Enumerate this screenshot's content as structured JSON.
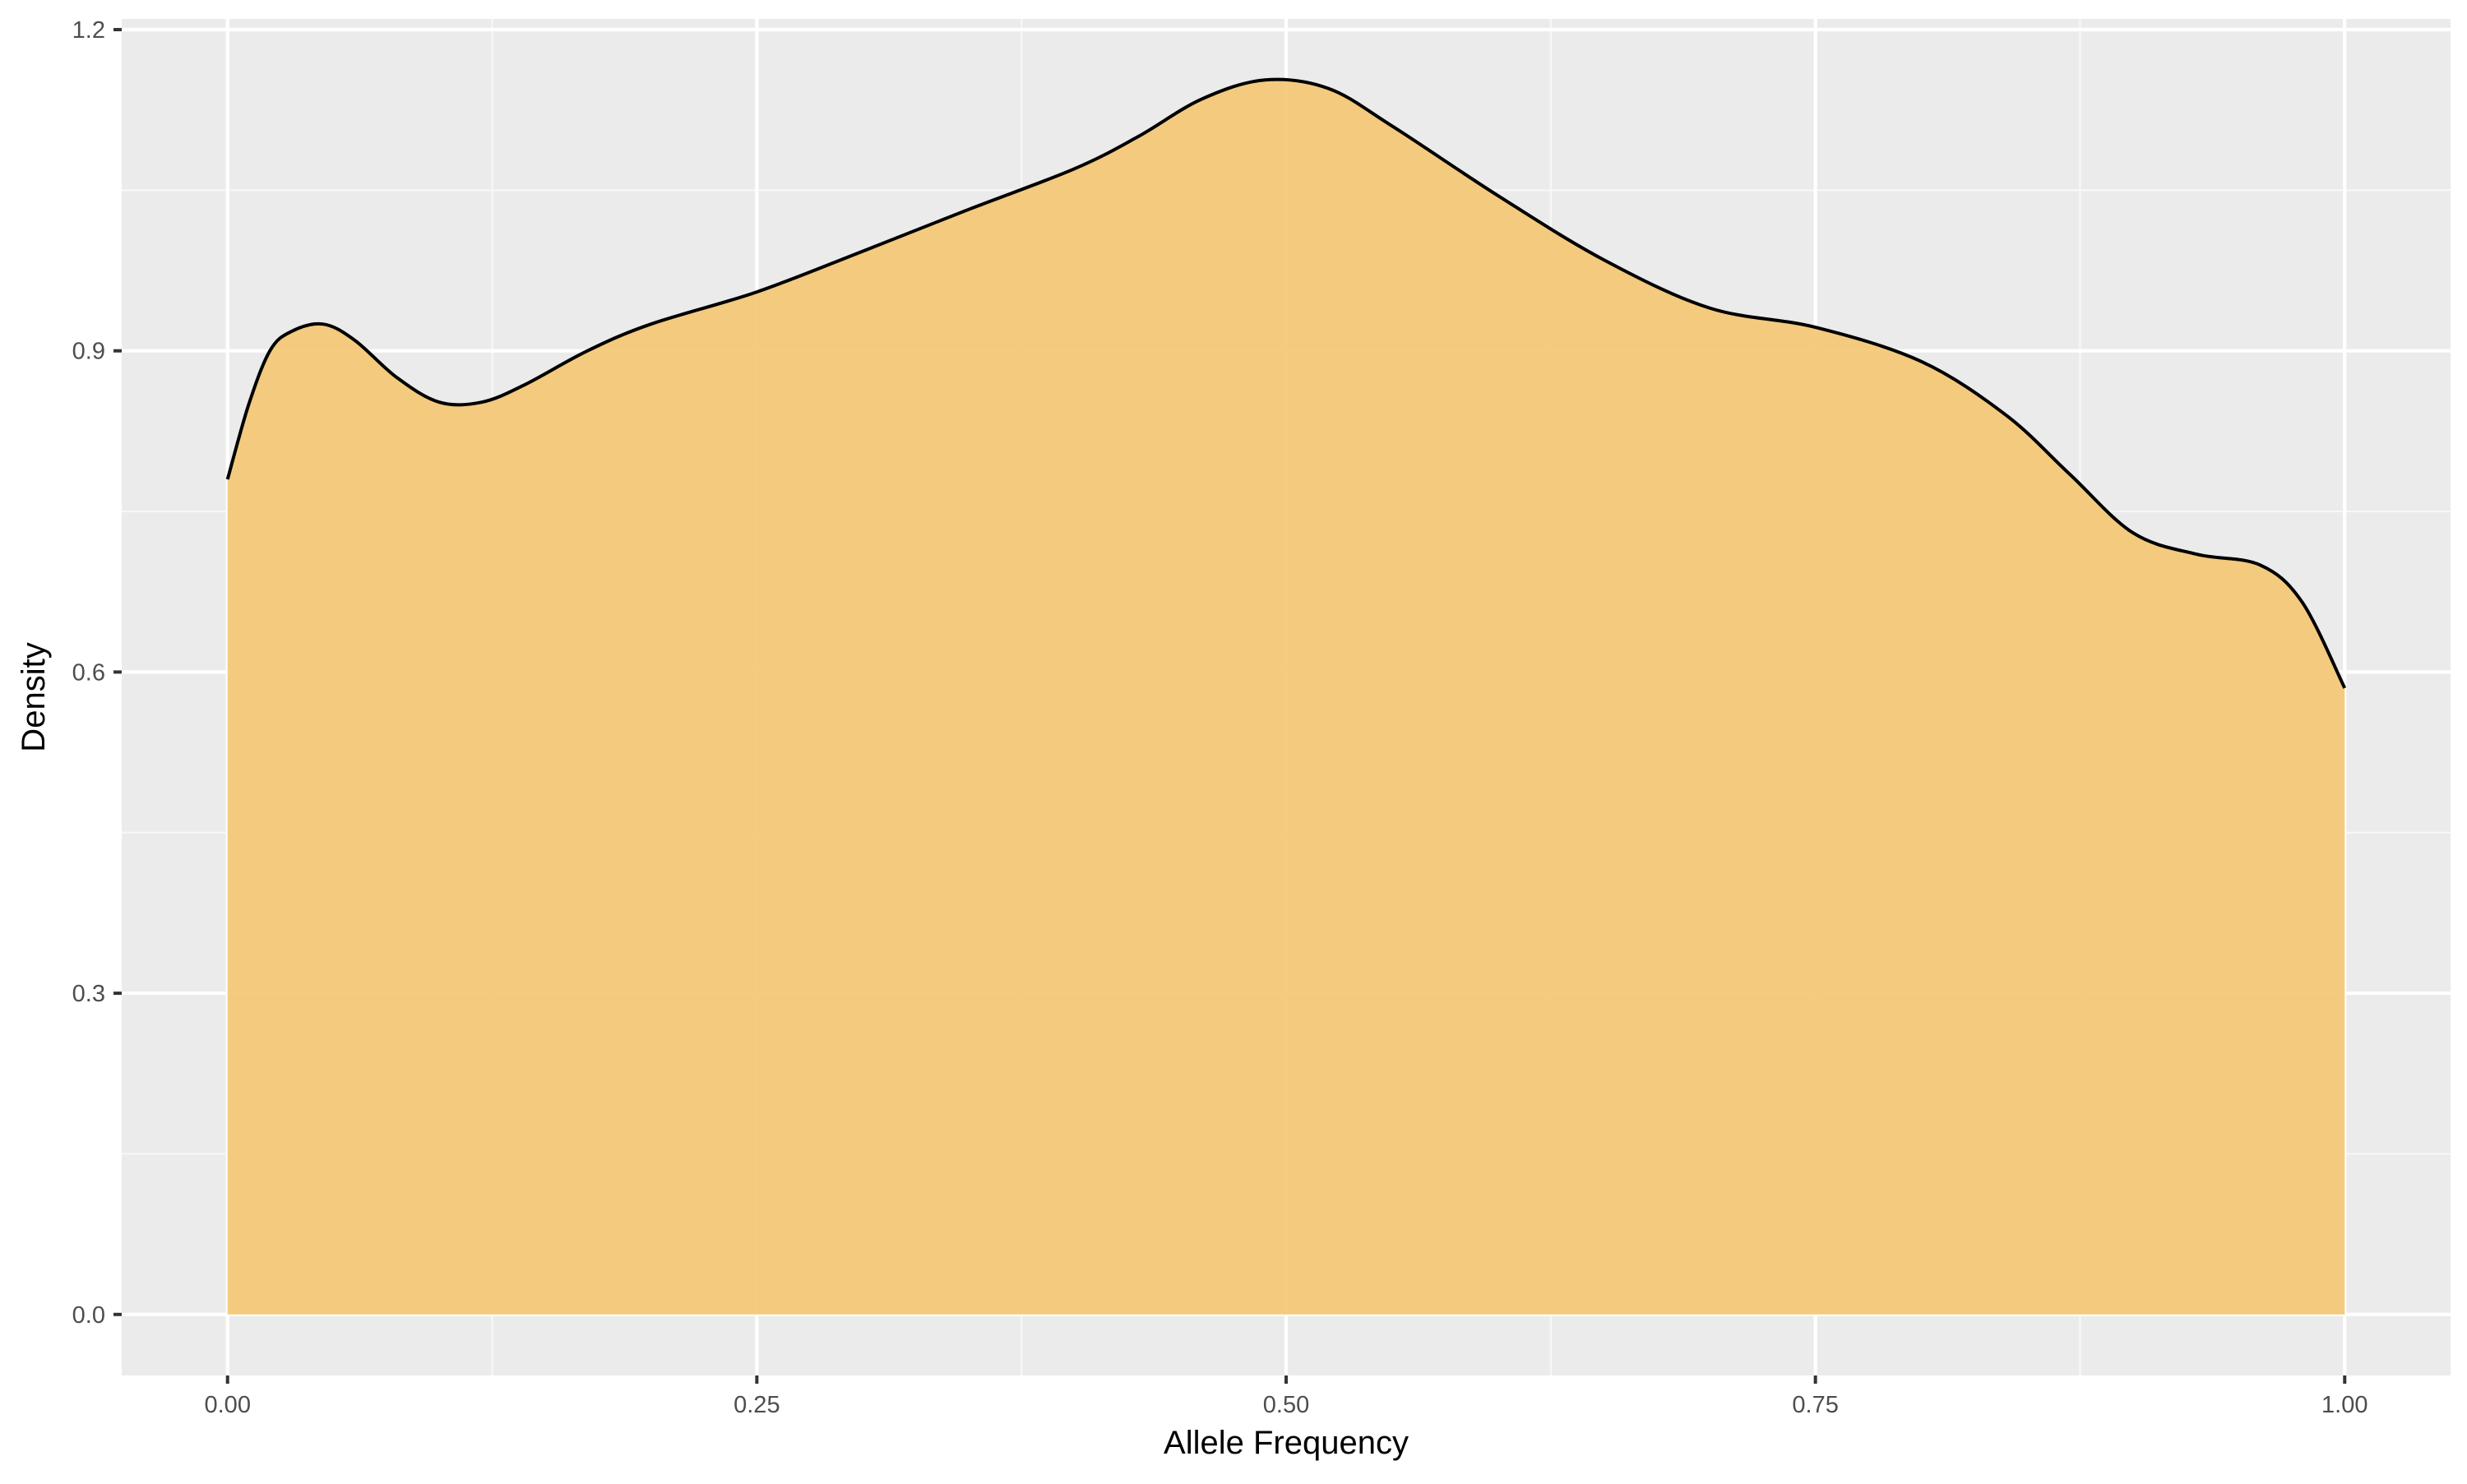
{
  "chart_data": {
    "type": "area",
    "title": "",
    "xlabel": "Allele Frequency",
    "ylabel": "Density",
    "xlim": [
      -0.05,
      1.05
    ],
    "ylim": [
      -0.057,
      1.21
    ],
    "x_ticks": [
      0.0,
      0.25,
      0.5,
      0.75,
      1.0
    ],
    "x_tick_labels": [
      "0.00",
      "0.25",
      "0.50",
      "0.75",
      "1.00"
    ],
    "y_ticks": [
      0.0,
      0.3,
      0.6,
      0.9,
      1.2
    ],
    "y_tick_labels": [
      "0.0",
      "0.3",
      "0.6",
      "0.9",
      "1.2"
    ],
    "grid": true,
    "legend": "none",
    "colors": {
      "fill": "#F3C775",
      "line": "#000000",
      "panel_background": "#EBEBEB",
      "grid": "#FFFFFF"
    },
    "series": [
      {
        "x": [
          0.0,
          0.01,
          0.02,
          0.03,
          0.045,
          0.06,
          0.08,
          0.1,
          0.12,
          0.14,
          0.17,
          0.2,
          0.25,
          0.3,
          0.35,
          0.4,
          0.43,
          0.46,
          0.49,
          0.52,
          0.55,
          0.6,
          0.65,
          0.7,
          0.75,
          0.8,
          0.84,
          0.87,
          0.9,
          0.93,
          0.96,
          0.98,
          1.0
        ],
        "y": [
          0.78,
          0.85,
          0.9,
          0.918,
          0.925,
          0.91,
          0.875,
          0.852,
          0.852,
          0.868,
          0.9,
          0.925,
          0.955,
          0.993,
          1.032,
          1.07,
          1.1,
          1.135,
          1.153,
          1.145,
          1.11,
          1.045,
          0.985,
          0.94,
          0.922,
          0.89,
          0.84,
          0.785,
          0.73,
          0.71,
          0.7,
          0.665,
          0.585
        ]
      }
    ]
  }
}
